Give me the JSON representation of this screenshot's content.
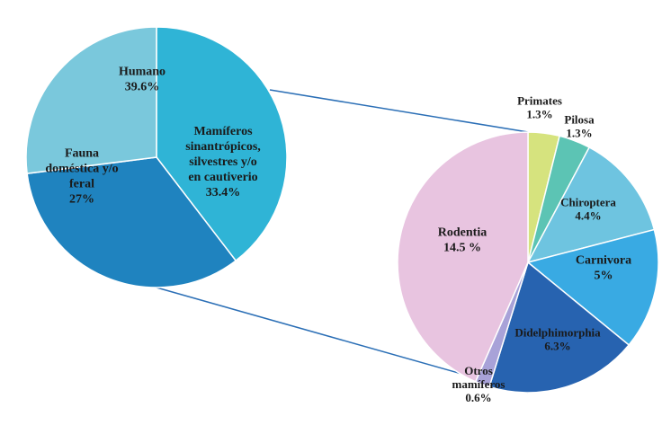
{
  "chart_data": [
    {
      "type": "pie",
      "slices": [
        {
          "label_lines": [
            "Humano"
          ],
          "value_text": "39.6%",
          "value": 39.6,
          "color": "#2fb4d6"
        },
        {
          "label_lines": [
            "Mamíferos",
            "sinantrópicos,",
            "silvestres y/o",
            "en cautiverio"
          ],
          "value_text": "33.4%",
          "value": 33.4,
          "color": "#1f83bf"
        },
        {
          "label_lines": [
            "Fauna",
            "doméstica y/o",
            "feral"
          ],
          "value_text": "27%",
          "value": 27,
          "color": "#7ac8dc"
        }
      ]
    },
    {
      "type": "pie",
      "slices": [
        {
          "label_lines": [
            "Primates"
          ],
          "value_text": "1.3%",
          "value": 1.3,
          "color": "#d6e37e"
        },
        {
          "label_lines": [
            "Pilosa"
          ],
          "value_text": "1.3%",
          "value": 1.3,
          "color": "#5cc4b4"
        },
        {
          "label_lines": [
            "Chiroptera"
          ],
          "value_text": "4.4%",
          "value": 4.4,
          "color": "#6ec4e0"
        },
        {
          "label_lines": [
            "Carnivora"
          ],
          "value_text": "5%",
          "value": 5,
          "color": "#39aae3"
        },
        {
          "label_lines": [
            "Didelphimorphia"
          ],
          "value_text": "6.3%",
          "value": 6.3,
          "color": "#2763b0"
        },
        {
          "label_lines": [
            "Otros",
            "mamíferos"
          ],
          "value_text": "0.6%",
          "value": 0.6,
          "color": "#a8a2d8"
        },
        {
          "label_lines": [
            "Rodentia"
          ],
          "value_text": "14.5 %",
          "value": 14.5,
          "color": "#e8c4e0"
        }
      ]
    }
  ]
}
